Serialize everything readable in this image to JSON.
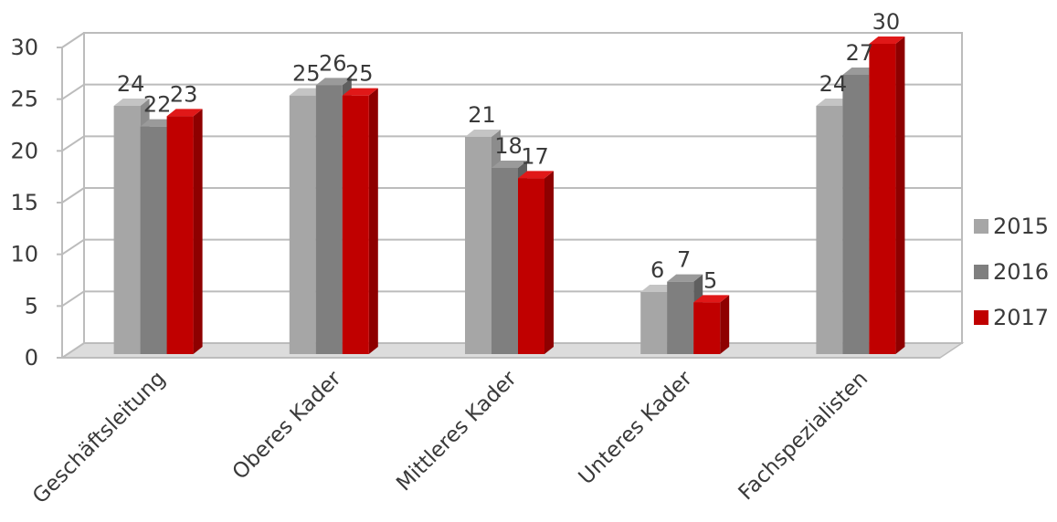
{
  "chart_data": {
    "type": "bar",
    "categories": [
      "Geschäftsleitung",
      "Oberes Kader",
      "Mittleres Kader",
      "Unteres Kader",
      "Fachspezialisten"
    ],
    "series": [
      {
        "name": "2015",
        "values": [
          24,
          25,
          21,
          6,
          24
        ]
      },
      {
        "name": "2016",
        "values": [
          22,
          26,
          18,
          7,
          27
        ]
      },
      {
        "name": "2017",
        "values": [
          23,
          25,
          17,
          5,
          30
        ]
      }
    ],
    "yticks": [
      "0",
      "5",
      "10",
      "15",
      "20",
      "25",
      "30"
    ],
    "ylim": [
      0,
      30
    ],
    "grid": true,
    "legend": "right",
    "colors": {
      "2015": {
        "front": "#a6a6a6",
        "side": "#8c8c8c",
        "top": "#c4c4c4"
      },
      "2016": {
        "front": "#7f7f7f",
        "side": "#5f5f5f",
        "top": "#9a9a9a"
      },
      "2017": {
        "front": "#c00000",
        "side": "#8e0000",
        "top": "#e01818"
      }
    }
  }
}
